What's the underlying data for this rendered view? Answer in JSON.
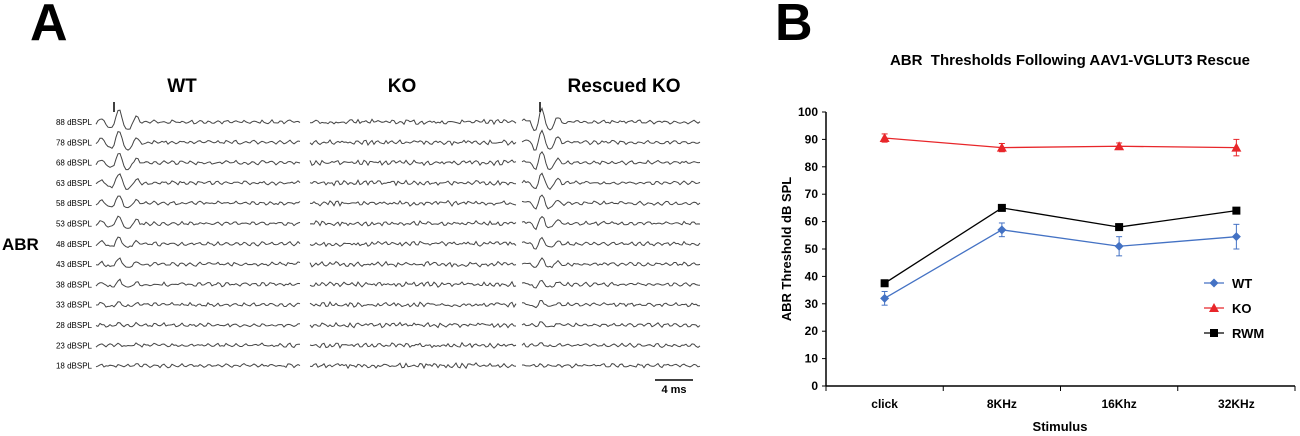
{
  "panel_a": {
    "letter": "A",
    "side_label": "ABR",
    "columns": [
      "WT",
      "KO",
      "Rescued KO"
    ],
    "levels": [
      "88 dBSPL",
      "78 dBSPL",
      "68 dBSPL",
      "63 dBSPL",
      "58 dBSPL",
      "53 dBSPL",
      "48 dBSPL",
      "43 dBSPL",
      "38 dBSPL",
      "33 dBSPL",
      "28 dBSPL",
      "23 dBSPL",
      "18 dBSPL"
    ],
    "onset_marker": "I",
    "scale_bar_label": "4 ms"
  },
  "panel_b": {
    "letter": "B"
  },
  "chart_data": {
    "type": "line",
    "title": "ABR  Thresholds Following AAV1-VGLUT3 Rescue",
    "xlabel": "Stimulus",
    "ylabel": "ABR Threshold dB SPL",
    "categories": [
      "click",
      "8KHz",
      "16Khz",
      "32KHz"
    ],
    "ylim": [
      0,
      100
    ],
    "yticks": [
      "0",
      "10",
      "20",
      "30",
      "40",
      "50",
      "60",
      "70",
      "80",
      "90",
      "100"
    ],
    "grid": false,
    "legend_position": "right",
    "series": [
      {
        "name": "WT",
        "color": "#4472c4",
        "marker": "diamond",
        "values": [
          32,
          57,
          51,
          54.5
        ],
        "errors": [
          2.5,
          2.5,
          3.5,
          4.5
        ]
      },
      {
        "name": "KO",
        "color": "#e8262a",
        "marker": "triangle",
        "values": [
          90.5,
          87,
          87.5,
          87
        ],
        "errors": [
          1.5,
          1.5,
          1.2,
          3
        ]
      },
      {
        "name": "RWM",
        "color": "#000000",
        "marker": "square",
        "values": [
          37.5,
          65,
          58,
          64
        ],
        "errors": [
          0,
          0,
          0,
          0
        ]
      }
    ]
  }
}
